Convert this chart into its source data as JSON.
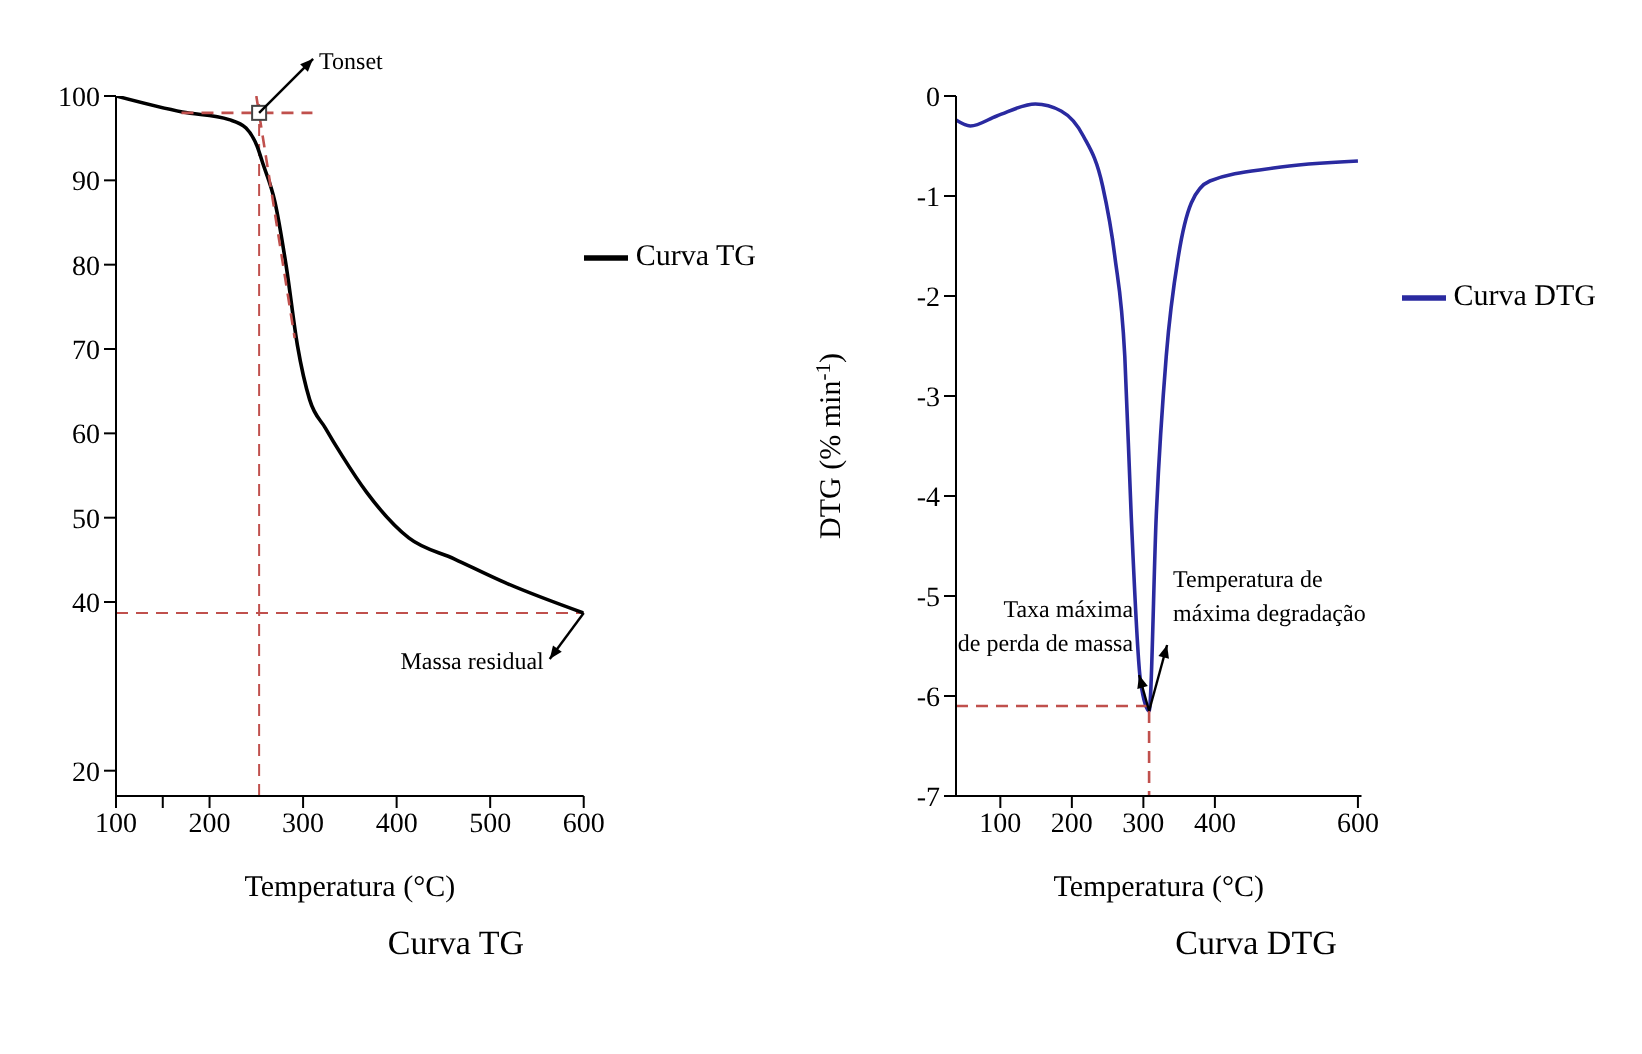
{
  "chart_data": [
    {
      "type": "line",
      "title": "Curva TG",
      "xlabel": "Temperatura (°C)",
      "xlim": [
        100,
        600
      ],
      "xticks": [
        100,
        {
          "value": 150,
          "label": null
        },
        200,
        300,
        400,
        500,
        600
      ],
      "ylim": [
        17,
        100
      ],
      "yticks": [
        20,
        40,
        50,
        60,
        70,
        80,
        90,
        100
      ],
      "legend": "right",
      "series": [
        {
          "name": "Curva TG",
          "color": "#000000",
          "x": [
            100,
            171,
            221,
            239,
            251,
            257,
            270,
            282,
            294,
            307,
            324,
            342,
            368,
            413,
            462,
            516,
            600
          ],
          "values": [
            100,
            98.1,
            97.2,
            96.2,
            94,
            92,
            87.4,
            79.8,
            70.4,
            64,
            60.6,
            57.3,
            53,
            47.6,
            45.1,
            42.3,
            38.7
          ]
        },
        {
          "color": "#c0504d",
          "line_style": "dashed",
          "x": [
            250,
            291
          ],
          "values": [
            100,
            71.3
          ]
        },
        {
          "color": "#c0504d",
          "line_style": "dashed",
          "x": [
            170,
            310
          ],
          "values": [
            98,
            98
          ]
        },
        {
          "type": "scatter",
          "marker": "square",
          "color": "#444444",
          "x": [
            253
          ],
          "values": [
            98
          ]
        }
      ],
      "ref_lines": [
        {
          "axis": "x",
          "value": 253,
          "color": "#c0504d",
          "line_style": "dashed"
        },
        {
          "axis": "y",
          "value": 38.7,
          "color": "#c0504d",
          "line_style": "dashed"
        }
      ],
      "annotations": [
        {
          "text": "Tonset",
          "x": 253,
          "y": 98
        },
        {
          "text": "Massa residual",
          "x": 600,
          "y": 38.7
        }
      ]
    },
    {
      "type": "line",
      "title": "Curva DTG",
      "xlabel": "Temperatura (°C)",
      "ylabel": "DTG (% min$^{-1}$)",
      "xlim": [
        38,
        605
      ],
      "xticks": [
        100,
        200,
        300,
        400,
        600
      ],
      "ylim": [
        -7,
        0
      ],
      "yticks": [
        -7,
        -6,
        -5,
        -4,
        -3,
        -2,
        -1,
        0
      ],
      "legend": "right",
      "series": [
        {
          "name": "Curva DTG",
          "color": "#2a2aa0",
          "x": [
            38,
            58,
            95,
            149,
            185,
            216,
            243,
            260,
            274,
            283,
            296,
            308,
            318,
            332,
            349,
            367,
            393,
            482,
            600
          ],
          "values": [
            -0.24,
            -0.3,
            -0.2,
            -0.08,
            -0.15,
            -0.4,
            -0.9,
            -1.6,
            -2.6,
            -4.2,
            -5.85,
            -6.15,
            -4.2,
            -2.6,
            -1.6,
            -1.07,
            -0.85,
            -0.72,
            -0.65
          ]
        },
        {
          "color": "#c0504d",
          "line_style": "dashed",
          "x": [
            38,
            308
          ],
          "values": [
            -6.1,
            -6.1
          ]
        },
        {
          "color": "#c0504d",
          "line_style": "dashed",
          "x": [
            308,
            308
          ],
          "values": [
            -6.15,
            -7
          ]
        }
      ],
      "annotations": [
        {
          "text": "Taxa máxima de perda de massa",
          "x": 308,
          "y": -6.15
        },
        {
          "text": "Temperatura de máxima degradação",
          "x": 308,
          "y": -6.15
        }
      ]
    }
  ]
}
